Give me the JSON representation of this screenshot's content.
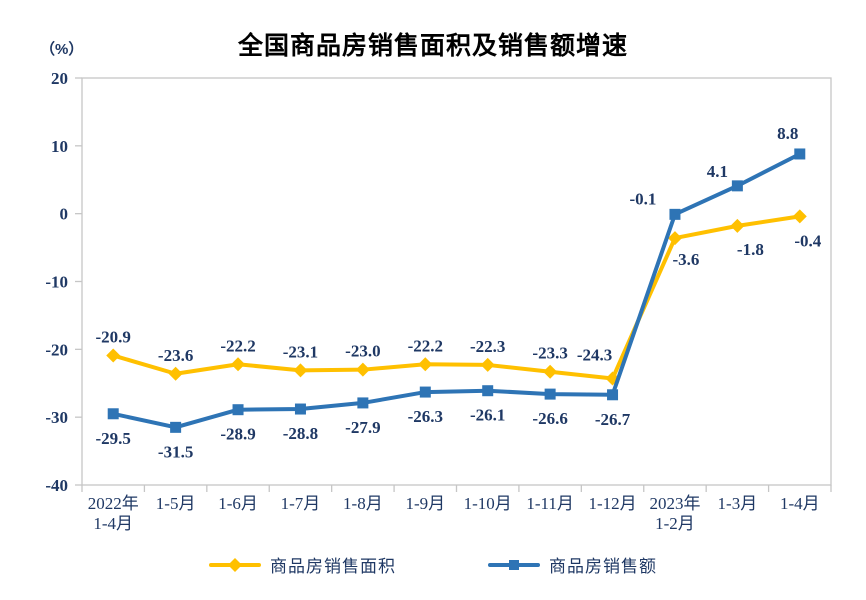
{
  "title": "全国商品房销售面积及销售额增速",
  "unit_label": "（%）",
  "colors": {
    "text": "#1F3864",
    "title": "#000000",
    "axis_border": "#C6C6C6",
    "sales_area": "#FFC000",
    "sales_amount": "#2E74B5"
  },
  "chart_data": {
    "type": "line",
    "title": "全国商品房销售面积及销售额增速",
    "ylabel": "（%）",
    "ylim": [
      -40,
      20
    ],
    "yticks": [
      20,
      10,
      0,
      -10,
      -20,
      -30,
      -40
    ],
    "grid": false,
    "legend_position": "bottom",
    "categories": [
      "2022年\n1-4月",
      "1-5月",
      "1-6月",
      "1-7月",
      "1-8月",
      "1-9月",
      "1-10月",
      "1-11月",
      "1-12月",
      "2023年\n1-2月",
      "1-3月",
      "1-4月"
    ],
    "series": [
      {
        "key": "sales-area",
        "name": "商品房销售面积",
        "color": "#FFC000",
        "marker": "diamond",
        "values": [
          -20.9,
          -23.6,
          -22.2,
          -23.1,
          -23.0,
          -22.2,
          -22.3,
          -23.3,
          -24.3,
          -3.6,
          -1.8,
          -0.4
        ]
      },
      {
        "key": "sales-amount",
        "name": "商品房销售额",
        "color": "#2E74B5",
        "marker": "square",
        "values": [
          -29.5,
          -31.5,
          -28.9,
          -28.8,
          -27.9,
          -26.3,
          -26.1,
          -26.6,
          -26.7,
          -0.1,
          4.1,
          8.8
        ]
      }
    ]
  }
}
